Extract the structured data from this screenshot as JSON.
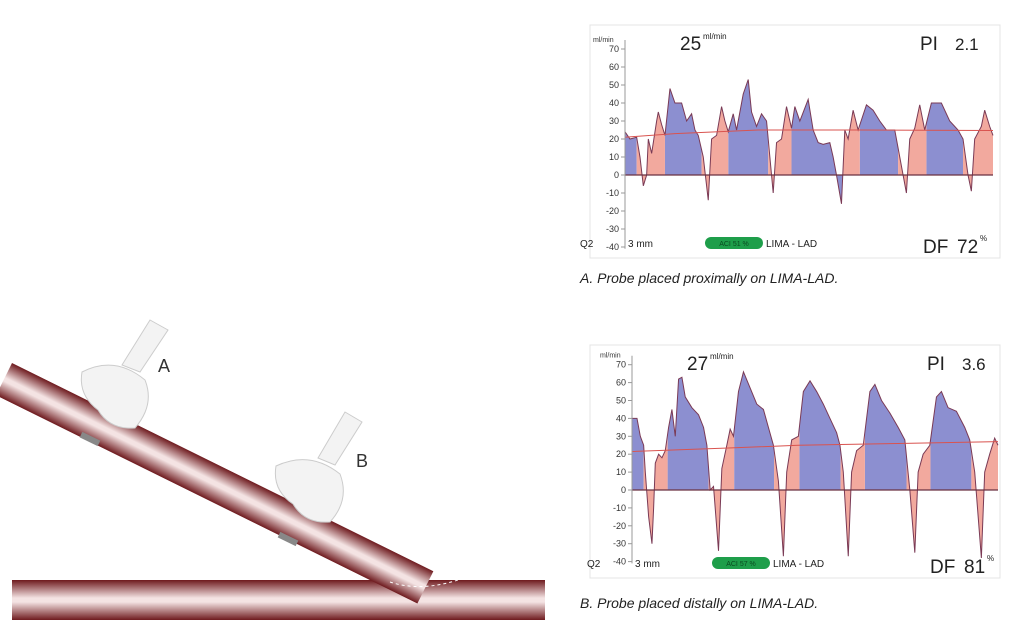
{
  "illustration": {
    "probe_a_label": "A",
    "probe_b_label": "B",
    "vessel_color": "#7a1e22"
  },
  "chart_data": [
    {
      "type": "area",
      "caption": "A. Probe placed proximally on LIMA-LAD.",
      "ylabel": "ml/min",
      "ylim": [
        -40,
        70
      ],
      "yticks": [
        70,
        60,
        50,
        40,
        30,
        20,
        10,
        0,
        -10,
        -20,
        -30,
        -40
      ],
      "flow_value": "25",
      "flow_unit": "ml/min",
      "pi_label": "PI",
      "pi_value": "2.1",
      "df_label": "DF",
      "df_value": "72",
      "df_unit": "%",
      "channel": "Q2",
      "probe_size": "3 mm",
      "aci_badge": "ACI 51 %",
      "vessel": "LIMA - LAD",
      "colors": {
        "diastole": "#8c8fd0",
        "systole": "#f2a99e",
        "mean": "#d9534f",
        "badge": "#1e9e4a"
      },
      "xlim": [
        0,
        1105
      ],
      "series": [
        [
          0,
          24
        ],
        [
          15,
          20
        ],
        [
          35,
          21
        ],
        [
          45,
          10
        ],
        [
          55,
          -6
        ],
        [
          65,
          0
        ],
        [
          70,
          20
        ],
        [
          80,
          12
        ],
        [
          95,
          30
        ],
        [
          100,
          35
        ],
        [
          110,
          28
        ],
        [
          120,
          22
        ],
        [
          135,
          48
        ],
        [
          150,
          40
        ],
        [
          170,
          40
        ],
        [
          185,
          30
        ],
        [
          200,
          34
        ],
        [
          210,
          25
        ],
        [
          220,
          22
        ],
        [
          235,
          10
        ],
        [
          250,
          -14
        ],
        [
          260,
          20
        ],
        [
          275,
          22
        ],
        [
          290,
          38
        ],
        [
          300,
          30
        ],
        [
          310,
          24
        ],
        [
          325,
          34
        ],
        [
          335,
          25
        ],
        [
          355,
          45
        ],
        [
          370,
          53
        ],
        [
          380,
          35
        ],
        [
          395,
          27
        ],
        [
          410,
          34
        ],
        [
          425,
          30
        ],
        [
          435,
          10
        ],
        [
          445,
          -10
        ],
        [
          455,
          18
        ],
        [
          470,
          20
        ],
        [
          485,
          38
        ],
        [
          500,
          26
        ],
        [
          510,
          38
        ],
        [
          525,
          30
        ],
        [
          550,
          42
        ],
        [
          565,
          25
        ],
        [
          580,
          18
        ],
        [
          595,
          17
        ],
        [
          615,
          18
        ],
        [
          625,
          10
        ],
        [
          635,
          0
        ],
        [
          650,
          -16
        ],
        [
          660,
          25
        ],
        [
          670,
          20
        ],
        [
          685,
          36
        ],
        [
          700,
          25
        ],
        [
          725,
          39
        ],
        [
          745,
          36
        ],
        [
          765,
          30
        ],
        [
          785,
          25
        ],
        [
          810,
          25
        ],
        [
          820,
          15
        ],
        [
          835,
          0
        ],
        [
          845,
          -10
        ],
        [
          855,
          20
        ],
        [
          870,
          26
        ],
        [
          885,
          39
        ],
        [
          900,
          25
        ],
        [
          920,
          40
        ],
        [
          950,
          40
        ],
        [
          975,
          30
        ],
        [
          1000,
          25
        ],
        [
          1015,
          20
        ],
        [
          1030,
          0
        ],
        [
          1040,
          -9
        ],
        [
          1050,
          20
        ],
        [
          1070,
          27
        ],
        [
          1080,
          36
        ],
        [
          1095,
          27
        ],
        [
          1105,
          22
        ]
      ],
      "diastole_intervals": [
        [
          0,
          35
        ],
        [
          120,
          230
        ],
        [
          310,
          430
        ],
        [
          500,
          655
        ],
        [
          705,
          820
        ],
        [
          905,
          1015
        ]
      ],
      "mean_line": [
        [
          0,
          21
        ],
        [
          150,
          23
        ],
        [
          400,
          25
        ],
        [
          700,
          25
        ],
        [
          1105,
          24.7
        ]
      ]
    },
    {
      "type": "area",
      "caption": "B. Probe placed distally on LIMA-LAD.",
      "ylabel": "ml/min",
      "ylim": [
        -40,
        70
      ],
      "yticks": [
        70,
        60,
        50,
        40,
        30,
        20,
        10,
        0,
        -10,
        -20,
        -30,
        -40
      ],
      "flow_value": "27",
      "flow_unit": "ml/min",
      "pi_label": "PI",
      "pi_value": "3.6",
      "df_label": "DF",
      "df_value": "81",
      "df_unit": "%",
      "channel": "Q2",
      "probe_size": "3 mm",
      "aci_badge": "ACI 57 %",
      "vessel": "LIMA - LAD",
      "colors": {
        "diastole": "#8c8fd0",
        "systole": "#f2a99e",
        "mean": "#d9534f",
        "badge": "#1e9e4a"
      },
      "xlim": [
        0,
        1100
      ],
      "series": [
        [
          0,
          40
        ],
        [
          15,
          40
        ],
        [
          25,
          30
        ],
        [
          35,
          25
        ],
        [
          40,
          10
        ],
        [
          50,
          -15
        ],
        [
          60,
          -30
        ],
        [
          65,
          -10
        ],
        [
          70,
          15
        ],
        [
          80,
          20
        ],
        [
          90,
          18
        ],
        [
          100,
          22
        ],
        [
          110,
          35
        ],
        [
          120,
          45
        ],
        [
          130,
          30
        ],
        [
          140,
          62
        ],
        [
          150,
          63
        ],
        [
          160,
          52
        ],
        [
          180,
          46
        ],
        [
          200,
          42
        ],
        [
          215,
          35
        ],
        [
          225,
          25
        ],
        [
          235,
          0
        ],
        [
          245,
          2
        ],
        [
          260,
          -34
        ],
        [
          270,
          12
        ],
        [
          285,
          25
        ],
        [
          295,
          34
        ],
        [
          305,
          30
        ],
        [
          320,
          55
        ],
        [
          335,
          66
        ],
        [
          355,
          57
        ],
        [
          375,
          48
        ],
        [
          395,
          45
        ],
        [
          410,
          35
        ],
        [
          425,
          25
        ],
        [
          440,
          5
        ],
        [
          455,
          -37
        ],
        [
          465,
          10
        ],
        [
          480,
          28
        ],
        [
          500,
          30
        ],
        [
          515,
          55
        ],
        [
          535,
          61
        ],
        [
          555,
          55
        ],
        [
          575,
          48
        ],
        [
          595,
          40
        ],
        [
          615,
          32
        ],
        [
          625,
          25
        ],
        [
          635,
          10
        ],
        [
          650,
          -37
        ],
        [
          660,
          10
        ],
        [
          675,
          22
        ],
        [
          695,
          25
        ],
        [
          715,
          55
        ],
        [
          730,
          59
        ],
        [
          750,
          50
        ],
        [
          775,
          43
        ],
        [
          800,
          35
        ],
        [
          820,
          28
        ],
        [
          835,
          0
        ],
        [
          850,
          -35
        ],
        [
          860,
          10
        ],
        [
          875,
          20
        ],
        [
          895,
          25
        ],
        [
          915,
          52
        ],
        [
          930,
          55
        ],
        [
          950,
          46
        ],
        [
          975,
          44
        ],
        [
          1000,
          35
        ],
        [
          1015,
          28
        ],
        [
          1030,
          10
        ],
        [
          1050,
          -38
        ],
        [
          1060,
          10
        ],
        [
          1075,
          20
        ],
        [
          1090,
          29
        ],
        [
          1100,
          25
        ]
      ],
      "diastole_intervals": [
        [
          0,
          35
        ],
        [
          107,
          230
        ],
        [
          307,
          427
        ],
        [
          503,
          627
        ],
        [
          700,
          825
        ],
        [
          897,
          1020
        ]
      ],
      "mean_line": [
        [
          0,
          21.5
        ],
        [
          300,
          23.5
        ],
        [
          500,
          25
        ],
        [
          800,
          26
        ],
        [
          1100,
          27
        ]
      ]
    }
  ]
}
